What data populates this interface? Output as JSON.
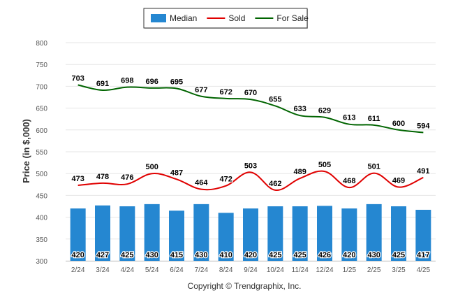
{
  "chart_data": {
    "type": "bar",
    "title": "",
    "xlabel": "",
    "ylabel": "Price (in $,000)",
    "ylim": [
      300,
      800
    ],
    "yticks": [
      300,
      350,
      400,
      450,
      500,
      550,
      600,
      650,
      700,
      750,
      800
    ],
    "grid": true,
    "legend_placement": "top-center",
    "categories": [
      "2/24",
      "3/24",
      "4/24",
      "5/24",
      "6/24",
      "7/24",
      "8/24",
      "9/24",
      "10/24",
      "11/24",
      "12/24",
      "1/25",
      "2/25",
      "3/25",
      "4/25"
    ],
    "series": [
      {
        "name": "Median",
        "type": "bar",
        "color": "#2587d1",
        "values": [
          420,
          427,
          425,
          430,
          415,
          430,
          410,
          420,
          425,
          425,
          426,
          420,
          430,
          425,
          417
        ]
      },
      {
        "name": "Sold",
        "type": "line",
        "color": "#e00000",
        "values": [
          473,
          478,
          476,
          500,
          487,
          464,
          472,
          503,
          462,
          489,
          505,
          468,
          501,
          469,
          491
        ]
      },
      {
        "name": "For Sale",
        "type": "line",
        "color": "#006400",
        "values": [
          703,
          691,
          698,
          696,
          695,
          677,
          672,
          670,
          655,
          633,
          629,
          613,
          611,
          600,
          594
        ]
      }
    ],
    "footer": "Copyright © Trendgraphix, Inc."
  }
}
